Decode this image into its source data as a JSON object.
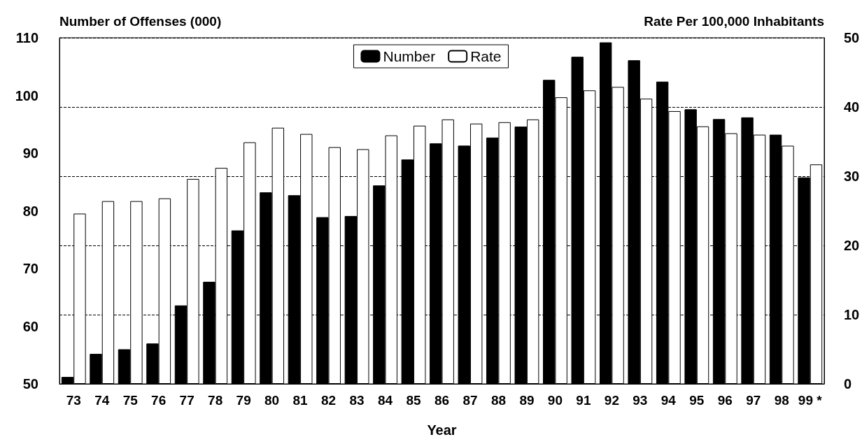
{
  "chart_data": {
    "type": "bar",
    "ylabel": "Number of Offenses (000)",
    "y2label": "Rate Per 100,000 Inhabitants",
    "xlabel": "Year",
    "categories": [
      "73",
      "74",
      "75",
      "76",
      "77",
      "78",
      "79",
      "80",
      "81",
      "82",
      "83",
      "84",
      "85",
      "86",
      "87",
      "88",
      "89",
      "90",
      "91",
      "92",
      "93",
      "94",
      "95",
      "96",
      "97",
      "98",
      "99 *"
    ],
    "series": [
      {
        "name": "Number",
        "color": "#000000",
        "values": [
          51.2,
          55.2,
          56.0,
          57.0,
          63.6,
          67.7,
          76.6,
          83.2,
          82.7,
          78.9,
          79.1,
          84.4,
          88.9,
          91.7,
          91.3,
          92.7,
          94.6,
          102.7,
          106.7,
          109.2,
          106.1,
          102.4,
          97.6,
          95.9,
          96.2,
          93.2,
          85.8
        ]
      },
      {
        "name": "Rate",
        "color": "#ffffff",
        "axis": "y2",
        "values": [
          24.6,
          26.4,
          26.4,
          26.8,
          29.6,
          31.2,
          34.9,
          37.0,
          36.1,
          34.2,
          33.9,
          35.9,
          37.3,
          38.2,
          37.6,
          37.8,
          38.2,
          41.4,
          42.4,
          42.9,
          41.2,
          39.4,
          37.2,
          36.2,
          36.0,
          34.4,
          31.7
        ]
      }
    ],
    "ylim": [
      50,
      110
    ],
    "yticks": [
      50,
      60,
      70,
      80,
      90,
      100,
      110
    ],
    "y2lim": [
      0,
      50
    ],
    "y2ticks": [
      0,
      10,
      20,
      30,
      40,
      50
    ],
    "grid": "y2",
    "line_style": "dashed",
    "legend": "top"
  }
}
